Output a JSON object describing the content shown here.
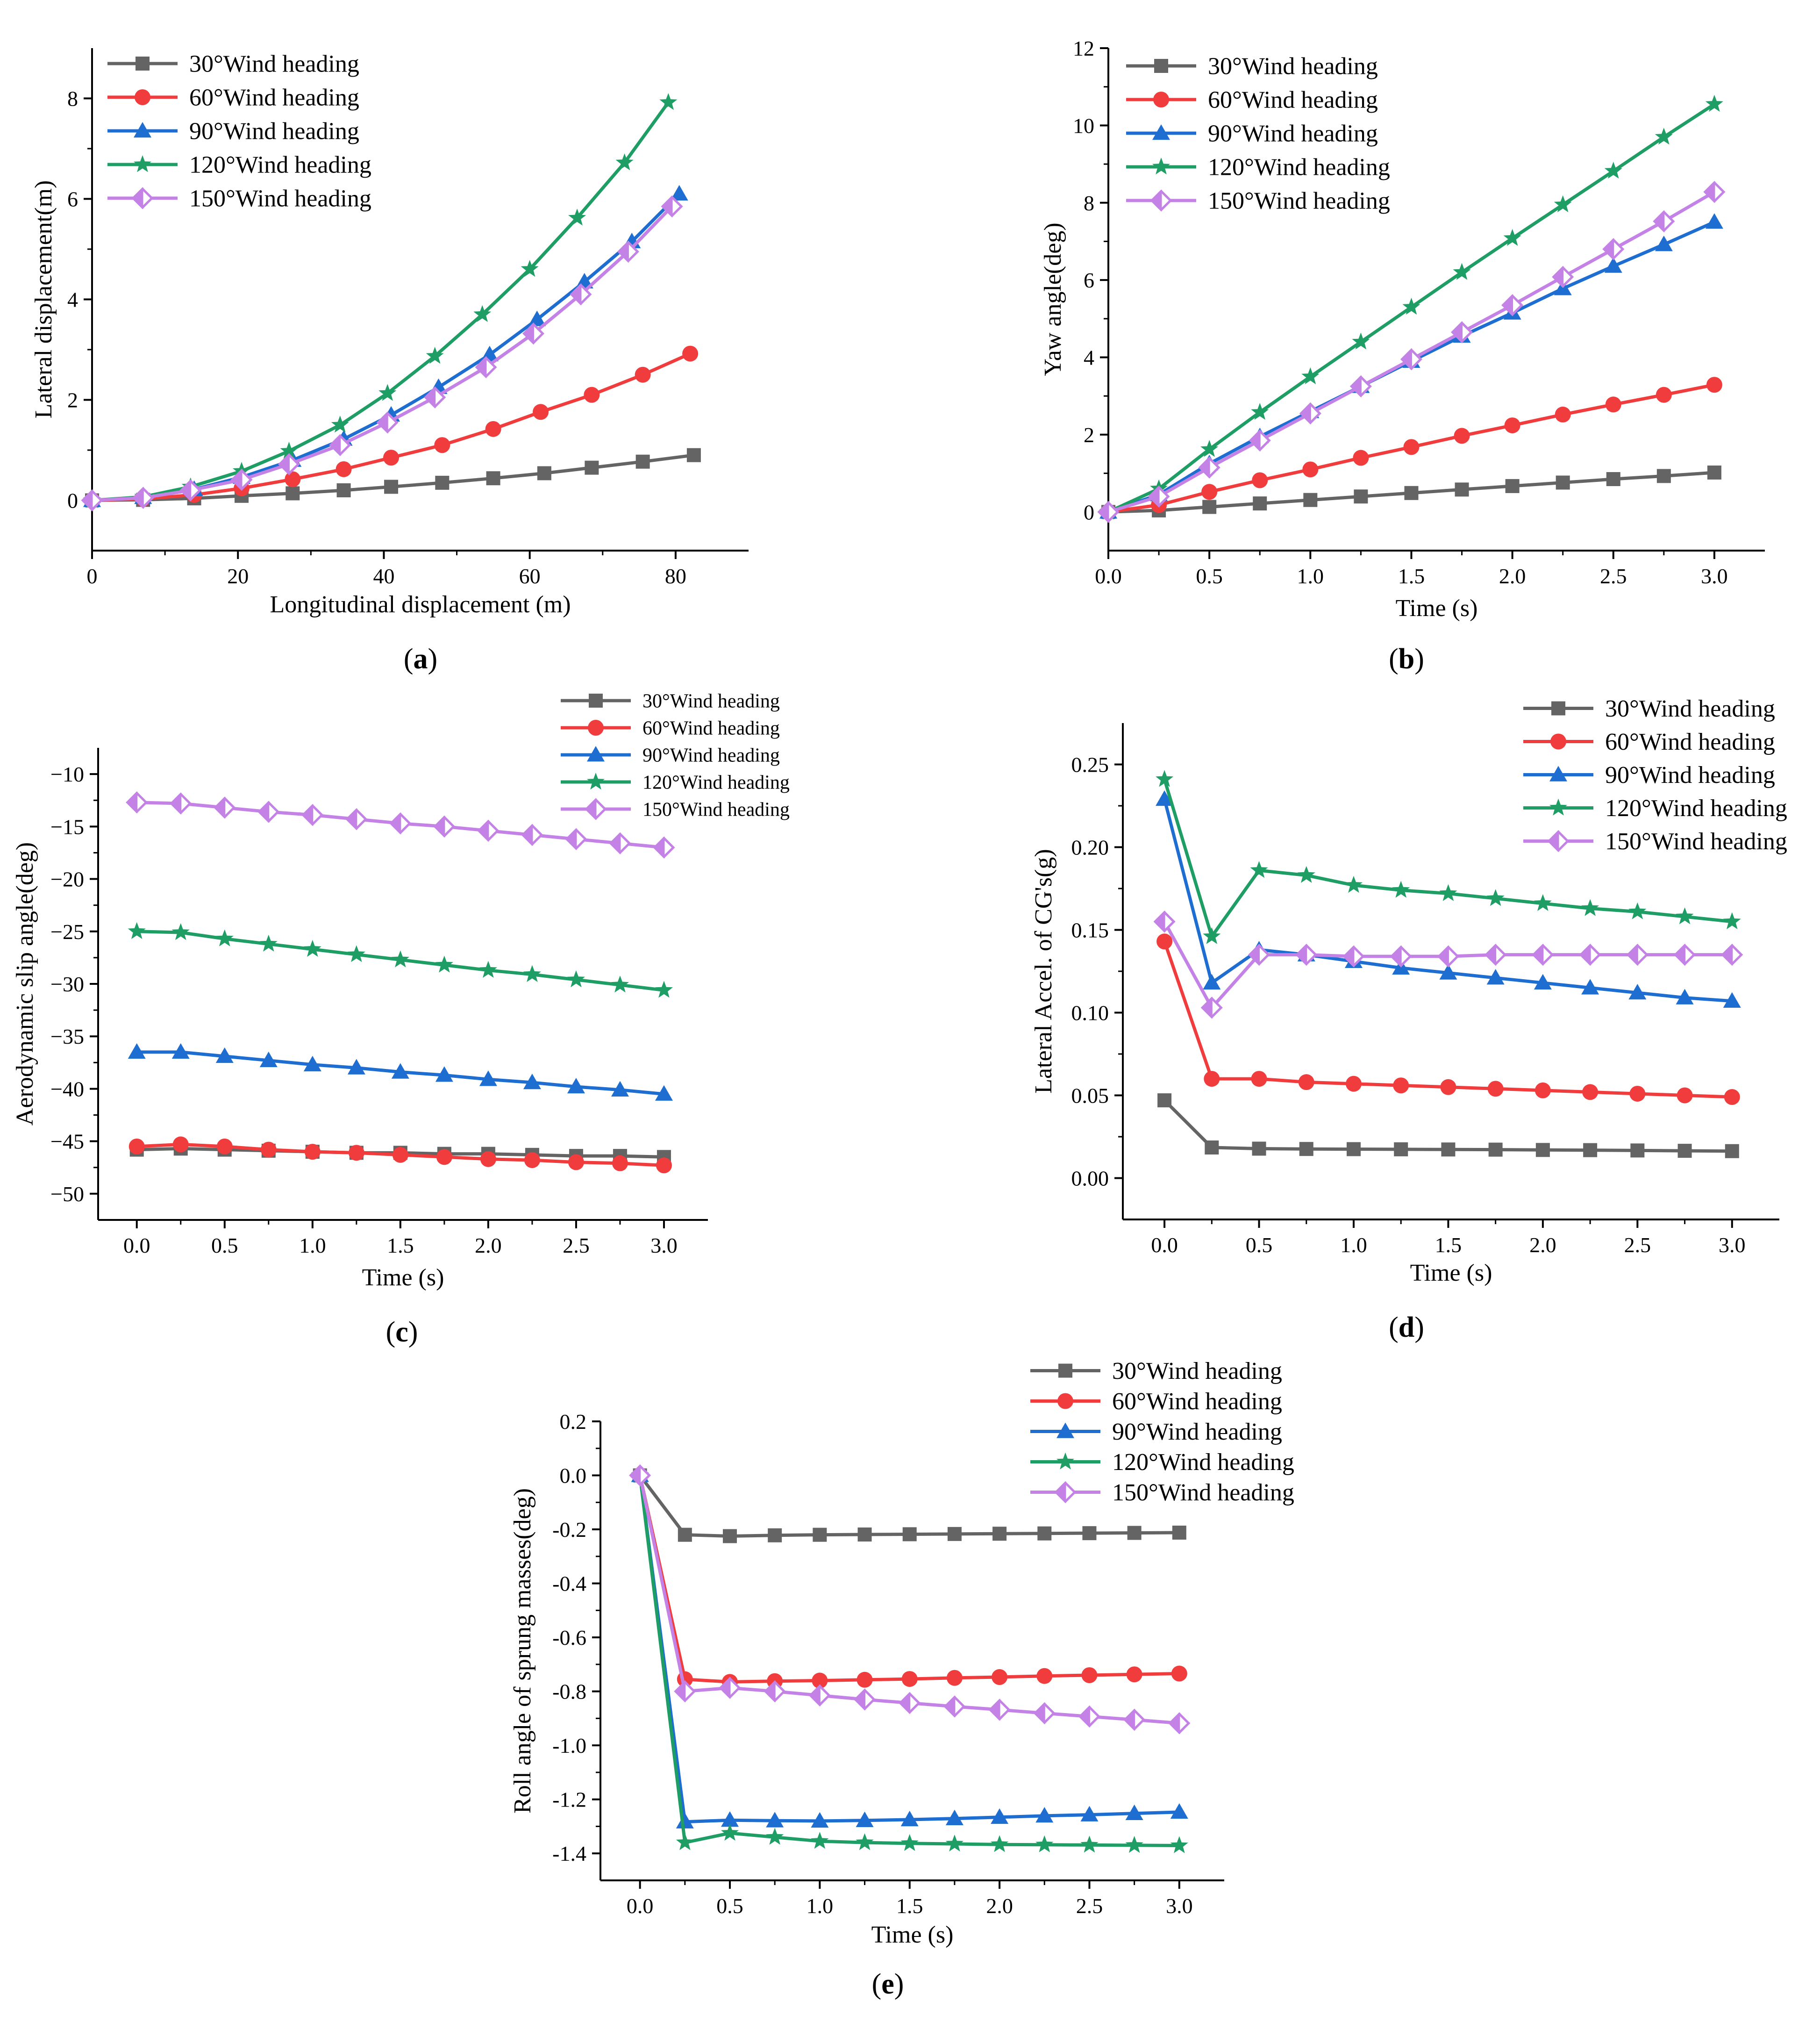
{
  "series_styles": [
    {
      "name": "30°Wind heading",
      "color": "#646464",
      "marker": "square"
    },
    {
      "name": "60°Wind heading",
      "color": "#f03c3c",
      "marker": "circle"
    },
    {
      "name": "90°Wind heading",
      "color": "#1e6ed2",
      "marker": "triangle"
    },
    {
      "name": "120°Wind heading",
      "color": "#1e9e64",
      "marker": "star"
    },
    {
      "name": "150°Wind heading",
      "color": "#c482e6",
      "marker": "diamond"
    }
  ],
  "chart_data": [
    {
      "id": "a",
      "type": "line",
      "caption": "a",
      "xlabel": "Longitudinal displacement (m)",
      "ylabel": "Lateral displacement(m)",
      "xlim": [
        0,
        90
      ],
      "ylim": [
        -1,
        9
      ],
      "xticks": [
        0,
        20,
        40,
        60,
        80
      ],
      "xtick_labels": [
        "0",
        "20",
        "40",
        "60",
        "80"
      ],
      "yticks": [
        0,
        2,
        4,
        6,
        8
      ],
      "ytick_labels": [
        "0",
        "2",
        "4",
        "6",
        "8"
      ],
      "series": [
        {
          "name": "30°Wind heading",
          "x": [
            0,
            7,
            14,
            20.5,
            27.5,
            34.5,
            41,
            48,
            55,
            62,
            68.5,
            75.5,
            82.5
          ],
          "y": [
            0,
            0.01,
            0.04,
            0.09,
            0.14,
            0.2,
            0.27,
            0.35,
            0.44,
            0.54,
            0.65,
            0.77,
            0.9
          ]
        },
        {
          "name": "60°Wind heading",
          "x": [
            0,
            7,
            14,
            20.5,
            27.5,
            34.5,
            41,
            48,
            55,
            61.5,
            68.5,
            75.5,
            82
          ],
          "y": [
            0,
            0.03,
            0.11,
            0.24,
            0.42,
            0.62,
            0.85,
            1.1,
            1.42,
            1.76,
            2.1,
            2.5,
            2.92
          ]
        },
        {
          "name": "90°Wind heading",
          "x": [
            0,
            7,
            14,
            20.5,
            27.5,
            34.5,
            41,
            47.5,
            54.5,
            61,
            67.5,
            74,
            80.5
          ],
          "y": [
            0,
            0.06,
            0.22,
            0.46,
            0.8,
            1.22,
            1.7,
            2.25,
            2.9,
            3.6,
            4.35,
            5.15,
            6.1
          ]
        },
        {
          "name": "120°Wind heading",
          "x": [
            0,
            7,
            13.5,
            20.5,
            27,
            34,
            40.5,
            47,
            53.5,
            60,
            66.5,
            73,
            79
          ],
          "y": [
            0,
            0.07,
            0.27,
            0.58,
            0.98,
            1.5,
            2.13,
            2.87,
            3.7,
            4.6,
            5.62,
            6.72,
            7.92
          ]
        },
        {
          "name": "150°Wind heading",
          "x": [
            0,
            7,
            13.5,
            20.5,
            27,
            34,
            40.5,
            47,
            54,
            60.5,
            67,
            73.5,
            79.5
          ],
          "y": [
            0,
            0.05,
            0.2,
            0.41,
            0.72,
            1.1,
            1.55,
            2.05,
            2.65,
            3.32,
            4.1,
            4.95,
            5.85
          ]
        }
      ]
    },
    {
      "id": "b",
      "type": "line",
      "caption": "b",
      "xlabel": "Time (s)",
      "ylabel": "Yaw angle(deg)",
      "xlim": [
        0,
        3.25
      ],
      "ylim": [
        -1,
        12
      ],
      "xticks": [
        0,
        0.5,
        1,
        1.5,
        2,
        2.5,
        3
      ],
      "xtick_labels": [
        "0.0",
        "0.5",
        "1.0",
        "1.5",
        "2.0",
        "2.5",
        "3.0"
      ],
      "yticks": [
        0,
        2,
        4,
        6,
        8,
        10,
        12
      ],
      "ytick_labels": [
        "0",
        "2",
        "4",
        "6",
        "8",
        "10",
        "12"
      ],
      "series": [
        {
          "name": "30°Wind heading",
          "x": [
            0,
            0.25,
            0.5,
            0.75,
            1,
            1.25,
            1.5,
            1.75,
            2,
            2.25,
            2.5,
            2.75,
            3
          ],
          "y": [
            0,
            0.04,
            0.13,
            0.22,
            0.31,
            0.4,
            0.49,
            0.58,
            0.67,
            0.76,
            0.85,
            0.93,
            1.02
          ]
        },
        {
          "name": "60°Wind heading",
          "x": [
            0,
            0.25,
            0.5,
            0.75,
            1,
            1.25,
            1.5,
            1.75,
            2,
            2.25,
            2.5,
            2.75,
            3
          ],
          "y": [
            0,
            0.18,
            0.52,
            0.82,
            1.1,
            1.4,
            1.68,
            1.97,
            2.24,
            2.52,
            2.78,
            3.03,
            3.29
          ]
        },
        {
          "name": "90°Wind heading",
          "x": [
            0,
            0.25,
            0.5,
            0.75,
            1,
            1.25,
            1.5,
            1.75,
            2,
            2.25,
            2.5,
            2.75,
            3
          ],
          "y": [
            0,
            0.45,
            1.25,
            1.95,
            2.6,
            3.25,
            3.9,
            4.55,
            5.15,
            5.78,
            6.36,
            6.92,
            7.5
          ]
        },
        {
          "name": "120°Wind heading",
          "x": [
            0,
            0.25,
            0.5,
            0.75,
            1,
            1.25,
            1.5,
            1.75,
            2,
            2.25,
            2.5,
            2.75,
            3
          ],
          "y": [
            0,
            0.6,
            1.62,
            2.58,
            3.5,
            4.4,
            5.3,
            6.2,
            7.08,
            7.95,
            8.82,
            9.7,
            10.55
          ]
        },
        {
          "name": "150°Wind heading",
          "x": [
            0,
            0.25,
            0.5,
            0.75,
            1,
            1.25,
            1.5,
            1.75,
            2,
            2.25,
            2.5,
            2.75,
            3
          ],
          "y": [
            0,
            0.4,
            1.15,
            1.85,
            2.55,
            3.25,
            3.95,
            4.65,
            5.35,
            6.08,
            6.8,
            7.52,
            8.28
          ]
        }
      ]
    },
    {
      "id": "c",
      "type": "line",
      "caption": "c",
      "xlabel": "Time (s)",
      "ylabel": "Aerodynamic slip angle(deg)",
      "xlim": [
        -0.22,
        3.25
      ],
      "ylim": [
        -52.5,
        -7.5
      ],
      "xticks": [
        0,
        0.5,
        1,
        1.5,
        2,
        2.5,
        3
      ],
      "xtick_labels": [
        "0.0",
        "0.5",
        "1.0",
        "1.5",
        "2.0",
        "2.5",
        "3.0"
      ],
      "yticks": [
        -50,
        -45,
        -40,
        -35,
        -30,
        -25,
        -20,
        -15,
        -10
      ],
      "ytick_labels": [
        "−50",
        "−45",
        "−40",
        "−35",
        "−30",
        "−25",
        "−20",
        "−15",
        "−10"
      ],
      "series": [
        {
          "name": "30°Wind heading",
          "x": [
            0,
            0.25,
            0.5,
            0.75,
            1,
            1.25,
            1.5,
            1.75,
            2,
            2.25,
            2.5,
            2.75,
            3
          ],
          "y": [
            -45.8,
            -45.7,
            -45.8,
            -45.9,
            -46.0,
            -46.1,
            -46.1,
            -46.2,
            -46.2,
            -46.3,
            -46.4,
            -46.4,
            -46.5
          ]
        },
        {
          "name": "60°Wind heading",
          "x": [
            0,
            0.25,
            0.5,
            0.75,
            1,
            1.25,
            1.5,
            1.75,
            2,
            2.25,
            2.5,
            2.75,
            3
          ],
          "y": [
            -45.5,
            -45.3,
            -45.5,
            -45.8,
            -46.0,
            -46.1,
            -46.3,
            -46.5,
            -46.7,
            -46.8,
            -47.0,
            -47.1,
            -47.3
          ]
        },
        {
          "name": "90°Wind heading",
          "x": [
            0,
            0.25,
            0.5,
            0.75,
            1,
            1.25,
            1.5,
            1.75,
            2,
            2.25,
            2.5,
            2.75,
            3
          ],
          "y": [
            -36.5,
            -36.5,
            -36.9,
            -37.3,
            -37.7,
            -38.0,
            -38.4,
            -38.7,
            -39.1,
            -39.4,
            -39.8,
            -40.1,
            -40.5
          ]
        },
        {
          "name": "120°Wind heading",
          "x": [
            0,
            0.25,
            0.5,
            0.75,
            1,
            1.25,
            1.5,
            1.75,
            2,
            2.25,
            2.5,
            2.75,
            3
          ],
          "y": [
            -25.0,
            -25.1,
            -25.7,
            -26.2,
            -26.7,
            -27.2,
            -27.7,
            -28.2,
            -28.7,
            -29.1,
            -29.6,
            -30.1,
            -30.6
          ]
        },
        {
          "name": "150°Wind heading",
          "x": [
            0,
            0.25,
            0.5,
            0.75,
            1,
            1.25,
            1.5,
            1.75,
            2,
            2.25,
            2.5,
            2.75,
            3
          ],
          "y": [
            -12.7,
            -12.8,
            -13.2,
            -13.6,
            -13.9,
            -14.3,
            -14.7,
            -15.0,
            -15.4,
            -15.8,
            -16.2,
            -16.6,
            -17.0
          ]
        }
      ]
    },
    {
      "id": "d",
      "type": "line",
      "caption": "d",
      "xlabel": "Time (s)",
      "ylabel": "Lateral Accel. of CG's(g)",
      "xlim": [
        -0.22,
        3.25
      ],
      "ylim": [
        -0.025,
        0.275
      ],
      "xticks": [
        0,
        0.5,
        1,
        1.5,
        2,
        2.5,
        3
      ],
      "xtick_labels": [
        "0.0",
        "0.5",
        "1.0",
        "1.5",
        "2.0",
        "2.5",
        "3.0"
      ],
      "yticks": [
        0,
        0.05,
        0.1,
        0.15,
        0.2,
        0.25
      ],
      "ytick_labels": [
        "0.00",
        "0.05",
        "0.10",
        "0.15",
        "0.20",
        "0.25"
      ],
      "series": [
        {
          "name": "30°Wind heading",
          "x": [
            0,
            0.25,
            0.5,
            0.75,
            1,
            1.25,
            1.5,
            1.75,
            2,
            2.25,
            2.5,
            2.75,
            3
          ],
          "y": [
            0.047,
            0.0185,
            0.0178,
            0.0176,
            0.0175,
            0.0174,
            0.0173,
            0.0172,
            0.017,
            0.0169,
            0.0167,
            0.0165,
            0.0163
          ]
        },
        {
          "name": "60°Wind heading",
          "x": [
            0,
            0.25,
            0.5,
            0.75,
            1,
            1.25,
            1.5,
            1.75,
            2,
            2.25,
            2.5,
            2.75,
            3
          ],
          "y": [
            0.143,
            0.06,
            0.06,
            0.058,
            0.057,
            0.056,
            0.055,
            0.054,
            0.053,
            0.052,
            0.051,
            0.05,
            0.049
          ]
        },
        {
          "name": "90°Wind heading",
          "x": [
            0,
            0.25,
            0.5,
            0.75,
            1,
            1.25,
            1.5,
            1.75,
            2,
            2.25,
            2.5,
            2.75,
            3
          ],
          "y": [
            0.229,
            0.118,
            0.138,
            0.135,
            0.131,
            0.127,
            0.124,
            0.121,
            0.118,
            0.115,
            0.112,
            0.109,
            0.107
          ]
        },
        {
          "name": "120°Wind heading",
          "x": [
            0,
            0.25,
            0.5,
            0.75,
            1,
            1.25,
            1.5,
            1.75,
            2,
            2.25,
            2.5,
            2.75,
            3
          ],
          "y": [
            0.241,
            0.146,
            0.186,
            0.183,
            0.177,
            0.174,
            0.172,
            0.169,
            0.166,
            0.163,
            0.161,
            0.158,
            0.155
          ]
        },
        {
          "name": "150°Wind heading",
          "x": [
            0,
            0.25,
            0.5,
            0.75,
            1,
            1.25,
            1.5,
            1.75,
            2,
            2.25,
            2.5,
            2.75,
            3
          ],
          "y": [
            0.155,
            0.103,
            0.135,
            0.135,
            0.134,
            0.134,
            0.134,
            0.135,
            0.135,
            0.135,
            0.135,
            0.135,
            0.135
          ]
        }
      ]
    },
    {
      "id": "e",
      "type": "line",
      "caption": "e",
      "xlabel": "Time (s)",
      "ylabel": "Roll angle of sprung masses(deg)",
      "xlim": [
        -0.22,
        3.25
      ],
      "ylim": [
        -1.5,
        0.2
      ],
      "xticks": [
        0,
        0.5,
        1,
        1.5,
        2,
        2.5,
        3
      ],
      "xtick_labels": [
        "0.0",
        "0.5",
        "1.0",
        "1.5",
        "2.0",
        "2.5",
        "3.0"
      ],
      "yticks": [
        -1.4,
        -1.2,
        -1.0,
        -0.8,
        -0.6,
        -0.4,
        -0.2,
        0.0,
        0.2
      ],
      "ytick_labels": [
        "-1.4",
        "-1.2",
        "-1.0",
        "-0.8",
        "-0.6",
        "-0.4",
        "-0.2",
        "0.0",
        "0.2"
      ],
      "series": [
        {
          "name": "30°Wind heading",
          "x": [
            0,
            0.25,
            0.5,
            0.75,
            1,
            1.25,
            1.5,
            1.75,
            2,
            2.25,
            2.5,
            2.75,
            3
          ],
          "y": [
            0,
            -0.22,
            -0.225,
            -0.222,
            -0.22,
            -0.219,
            -0.218,
            -0.217,
            -0.216,
            -0.215,
            -0.214,
            -0.213,
            -0.212
          ]
        },
        {
          "name": "60°Wind heading",
          "x": [
            0,
            0.25,
            0.5,
            0.75,
            1,
            1.25,
            1.5,
            1.75,
            2,
            2.25,
            2.5,
            2.75,
            3
          ],
          "y": [
            0,
            -0.755,
            -0.765,
            -0.762,
            -0.76,
            -0.757,
            -0.754,
            -0.75,
            -0.747,
            -0.743,
            -0.74,
            -0.737,
            -0.734
          ]
        },
        {
          "name": "90°Wind heading",
          "x": [
            0,
            0.25,
            0.5,
            0.75,
            1,
            1.25,
            1.5,
            1.75,
            2,
            2.25,
            2.5,
            2.75,
            3
          ],
          "y": [
            0,
            -1.283,
            -1.277,
            -1.279,
            -1.28,
            -1.278,
            -1.275,
            -1.271,
            -1.266,
            -1.261,
            -1.257,
            -1.252,
            -1.247
          ]
        },
        {
          "name": "120°Wind heading",
          "x": [
            0,
            0.25,
            0.5,
            0.75,
            1,
            1.25,
            1.5,
            1.75,
            2,
            2.25,
            2.5,
            2.75,
            3
          ],
          "y": [
            0,
            -1.36,
            -1.325,
            -1.34,
            -1.355,
            -1.36,
            -1.363,
            -1.365,
            -1.367,
            -1.368,
            -1.369,
            -1.37,
            -1.371
          ]
        },
        {
          "name": "150°Wind heading",
          "x": [
            0,
            0.25,
            0.5,
            0.75,
            1,
            1.25,
            1.5,
            1.75,
            2,
            2.25,
            2.5,
            2.75,
            3
          ],
          "y": [
            0,
            -0.8,
            -0.787,
            -0.8,
            -0.815,
            -0.83,
            -0.843,
            -0.856,
            -0.868,
            -0.881,
            -0.893,
            -0.905,
            -0.918
          ]
        }
      ]
    }
  ]
}
